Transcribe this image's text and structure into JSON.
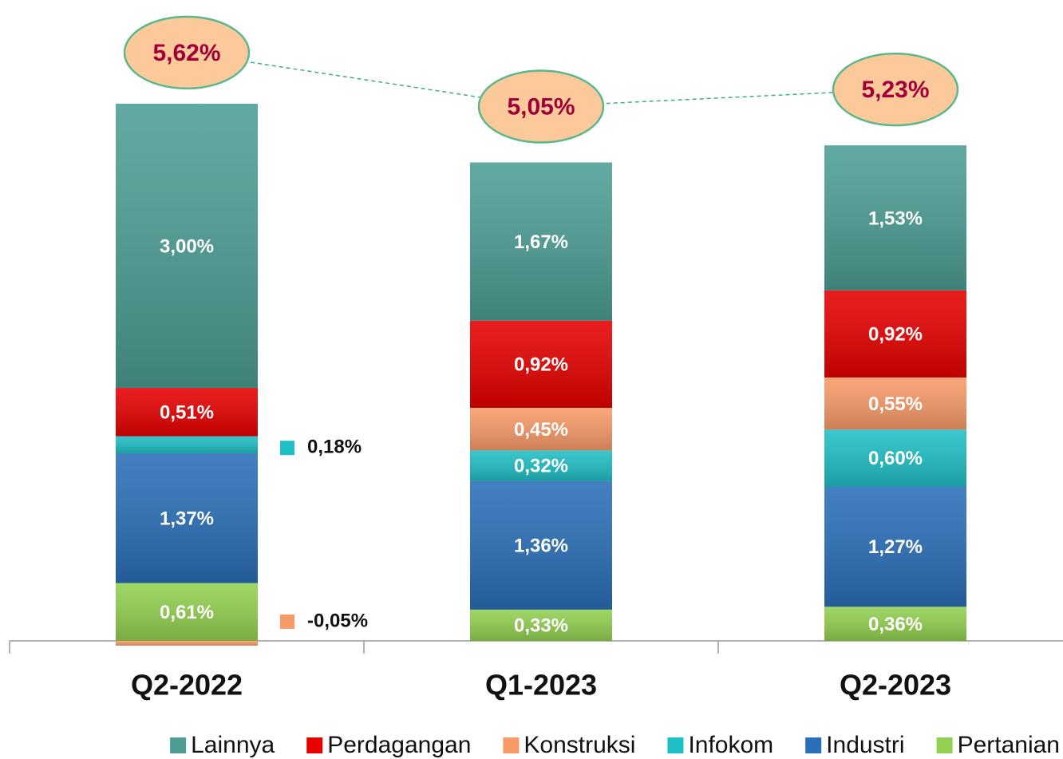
{
  "chart_data": {
    "type": "stacked_bar",
    "categories": [
      "Q2-2022",
      "Q1-2023",
      "Q2-2023"
    ],
    "series": [
      {
        "name": "Pertanian",
        "color": "#92d050",
        "values": [
          0.61,
          0.33,
          0.36
        ],
        "value_labels": [
          "0,61%",
          "0,33%",
          "0,36%"
        ]
      },
      {
        "name": "Industri",
        "color": "#2a6fb8",
        "values": [
          1.37,
          1.36,
          1.27
        ],
        "value_labels": [
          "1,37%",
          "1,36%",
          "1,27%"
        ]
      },
      {
        "name": "Infokom",
        "color": "#1fbfc6",
        "values": [
          0.18,
          0.32,
          0.6
        ],
        "value_labels": [
          "0,18%",
          "0,32%",
          "0,60%"
        ]
      },
      {
        "name": "Konstruksi",
        "color": "#f89a68",
        "values": [
          -0.05,
          0.45,
          0.55
        ],
        "value_labels": [
          "-0,05%",
          "0,45%",
          "0,55%"
        ]
      },
      {
        "name": "Perdagangan",
        "color": "#e60000",
        "values": [
          0.51,
          0.92,
          0.92
        ],
        "value_labels": [
          "0,51%",
          "0,92%",
          "0,92%"
        ]
      },
      {
        "name": "Lainnya",
        "color": "#4c9e94",
        "values": [
          3.0,
          1.67,
          1.53
        ],
        "value_labels": [
          "3,00%",
          "1,67%",
          "1,53%"
        ]
      }
    ],
    "legend_order": [
      "Lainnya",
      "Perdagangan",
      "Konstruksi",
      "Infokom",
      "Industri",
      "Pertanian"
    ],
    "totals": [
      5.62,
      5.05,
      5.23
    ],
    "total_labels": [
      "5,62%",
      "5,05%",
      "5,23%"
    ],
    "ylim": [
      -0.2,
      6.2
    ],
    "legend": "bottom"
  }
}
